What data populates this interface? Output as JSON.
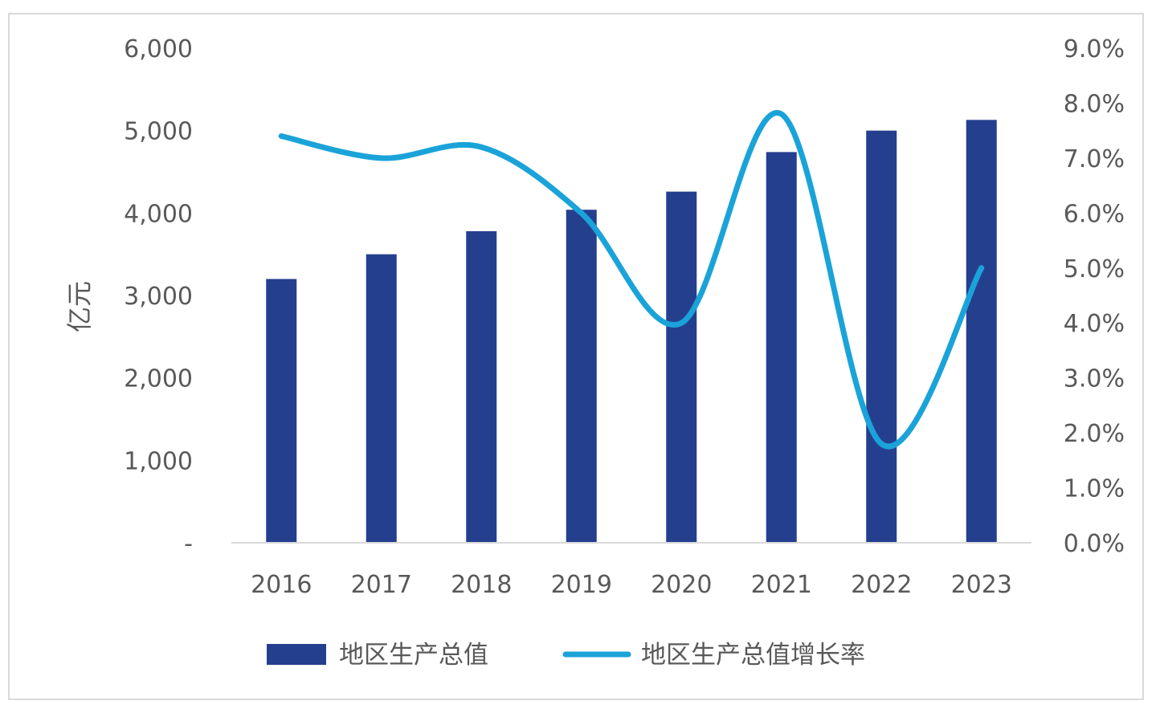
{
  "chart_data": {
    "type": "bar",
    "categories": [
      "2016",
      "2017",
      "2018",
      "2019",
      "2020",
      "2021",
      "2022",
      "2023"
    ],
    "series": [
      {
        "name": "地区生产总值",
        "type": "bar",
        "axis": "left",
        "values": [
          3200,
          3500,
          3780,
          4040,
          4260,
          4740,
          5000,
          5130
        ]
      },
      {
        "name": "地区生产总值增长率",
        "type": "line",
        "axis": "right",
        "values": [
          7.4,
          7.0,
          7.2,
          6.0,
          4.0,
          7.8,
          1.8,
          5.0
        ]
      }
    ],
    "ylabel": "亿元",
    "ylim": [
      0,
      6000
    ],
    "yticks": [
      "-",
      "1,000",
      "2,000",
      "3,000",
      "4,000",
      "5,000",
      "6,000"
    ],
    "y2lim": [
      0,
      9
    ],
    "y2ticks": [
      "0.0%",
      "1.0%",
      "2.0%",
      "3.0%",
      "4.0%",
      "5.0%",
      "6.0%",
      "7.0%",
      "8.0%",
      "9.0%"
    ],
    "legend_position": "bottom",
    "grid": false,
    "colors": {
      "bar": "#253f8f",
      "line": "#1aa3d9",
      "axis": "#d9d9d9",
      "text": "#595959"
    }
  }
}
